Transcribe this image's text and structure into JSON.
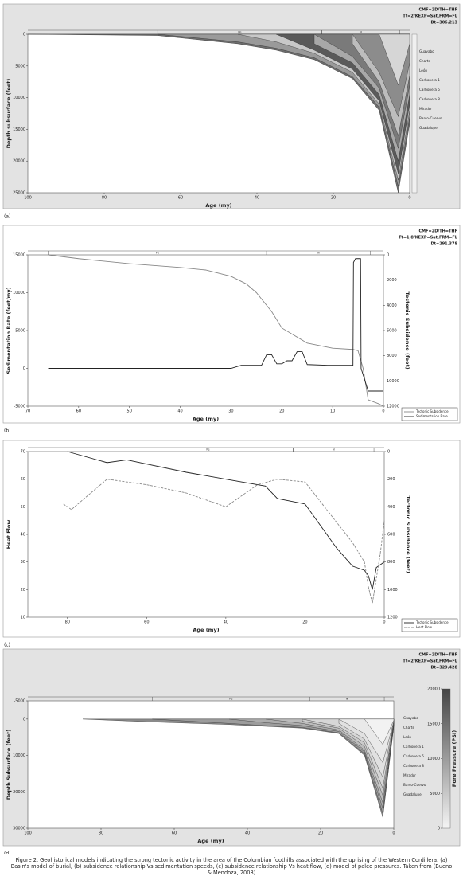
{
  "chart_data": [
    {
      "type": "area",
      "label": "(a)",
      "header": [
        "CMF=2D/TH=THF",
        "Tt=2/KEXP=Sat,FRM=FL",
        "Dt=306.213"
      ],
      "xlabel": "Age (my)",
      "ylabel": "Depth subsurface (feet)",
      "xlim": [
        100,
        0
      ],
      "xticks": [
        100,
        80,
        60,
        40,
        20,
        0
      ],
      "ylim": [
        25000,
        0
      ],
      "yticks": [
        0,
        5000,
        10000,
        15000,
        20000,
        25000
      ],
      "periods": [
        {
          "name": "Pe",
          "start": 66,
          "end": 23
        },
        {
          "name": "N",
          "start": 23,
          "end": 2.6
        }
      ],
      "legend": "labels-right",
      "x": [
        100,
        66,
        45,
        35,
        25,
        15,
        8,
        3,
        0
      ],
      "series": [
        {
          "name": "Guadalupe",
          "color": "#6d6d6d",
          "values": [
            0,
            200,
            1500,
            2500,
            4000,
            7000,
            12000,
            25000,
            14000
          ]
        },
        {
          "name": "Barco-Cuervo",
          "color": "#9a9a9a",
          "values": [
            null,
            0,
            1200,
            2200,
            3700,
            6700,
            11500,
            24000,
            13000
          ]
        },
        {
          "name": "Mirador",
          "color": "#c8c8c8",
          "values": [
            null,
            null,
            0,
            1200,
            3000,
            6000,
            11000,
            23000,
            12000
          ]
        },
        {
          "name": "Carbonera 8",
          "color": "#5a5a5a",
          "values": [
            null,
            null,
            null,
            0,
            2500,
            5500,
            10500,
            22000,
            11000
          ]
        },
        {
          "name": "Carbonera 5",
          "color": "#a8a8a8",
          "values": [
            null,
            null,
            null,
            null,
            1500,
            4500,
            9500,
            20000,
            9500
          ]
        },
        {
          "name": "Carbonera 1",
          "color": "#7a7a7a",
          "values": [
            null,
            null,
            null,
            null,
            0,
            3500,
            8500,
            18000,
            8000
          ]
        },
        {
          "name": "León",
          "color": "#bdbdbd",
          "values": [
            null,
            null,
            null,
            null,
            null,
            1500,
            7500,
            16000,
            6500
          ]
        },
        {
          "name": "Charte",
          "color": "#8c8c8c",
          "values": [
            null,
            null,
            null,
            null,
            null,
            0,
            6000,
            13000,
            4500
          ]
        },
        {
          "name": "Guayabo",
          "color": "#d6d6d6",
          "values": [
            null,
            null,
            null,
            null,
            null,
            null,
            0,
            8000,
            1500
          ]
        }
      ]
    },
    {
      "type": "line",
      "label": "(b)",
      "header": [
        "CMF=2D/TH=THF",
        "Tt=1,8/KEXP=Sat,FRM=FL",
        "Dt=291.378"
      ],
      "xlabel": "Age (my)",
      "ylabel": "Sedimentation Rate (feet/my)",
      "y2label": "Tectonic Subsidence (feet)",
      "xlim": [
        70,
        0
      ],
      "xticks": [
        70,
        60,
        50,
        40,
        30,
        20,
        10,
        0
      ],
      "ylim": [
        -5000,
        15000
      ],
      "yticks": [
        -5000,
        0,
        5000,
        10000,
        15000
      ],
      "y2lim": [
        12000,
        0
      ],
      "y2ticks": [
        0,
        2000,
        4000,
        6000,
        8000,
        10000,
        12000
      ],
      "periods": [
        {
          "name": "Pe",
          "start": 66,
          "end": 23
        },
        {
          "name": "N",
          "start": 23,
          "end": 2.6
        }
      ],
      "legend": "lower right",
      "series": [
        {
          "name": "Tectonic Subsidence",
          "color": "#888888",
          "axis": "y2",
          "x": [
            66,
            60,
            50,
            40,
            35,
            30,
            27,
            25,
            22,
            20,
            15,
            10,
            6,
            5,
            4,
            3,
            1,
            0
          ],
          "values": [
            0,
            300,
            700,
            1000,
            1200,
            1700,
            2300,
            3000,
            4500,
            5800,
            7000,
            7400,
            7500,
            7600,
            9000,
            11500,
            11800,
            12000
          ]
        },
        {
          "name": "Sedimentation Rate",
          "color": "#222222",
          "x": [
            66,
            30,
            28,
            24,
            23,
            22,
            21,
            20,
            19,
            18,
            17,
            16,
            15,
            11,
            6,
            5.9,
            5.5,
            4.5,
            4.4,
            3,
            0
          ],
          "values": [
            0,
            0,
            400,
            400,
            1800,
            1800,
            600,
            600,
            1000,
            1000,
            2200,
            2200,
            500,
            400,
            400,
            14000,
            14500,
            14500,
            0,
            -3000,
            -3000
          ]
        }
      ]
    },
    {
      "type": "line",
      "label": "(c)",
      "xlabel": "Age (my)",
      "ylabel": "Heat Flow",
      "y2label": "Tectonic Subsidence (feet)",
      "xlim": [
        90,
        0
      ],
      "xticks": [
        80,
        60,
        40,
        20,
        0
      ],
      "ylim": [
        10,
        70
      ],
      "yticks": [
        10,
        20,
        30,
        40,
        50,
        60,
        70
      ],
      "y2lim": [
        1200,
        0
      ],
      "y2ticks": [
        0,
        200,
        400,
        600,
        800,
        1000,
        1200
      ],
      "periods": [
        {
          "name": "Pe",
          "start": 66,
          "end": 23
        },
        {
          "name": "N",
          "start": 23,
          "end": 2.6
        }
      ],
      "legend": "lower right",
      "series": [
        {
          "name": "Tectonic Subsidence",
          "color": "#222222",
          "axis": "y2",
          "x": [
            80,
            70,
            65,
            50,
            40,
            30,
            27,
            20,
            12,
            8,
            5,
            4,
            3,
            2,
            0
          ],
          "values": [
            0,
            80,
            60,
            150,
            200,
            250,
            340,
            380,
            700,
            830,
            860,
            900,
            1000,
            840,
            800
          ]
        },
        {
          "name": "Heat Flow",
          "color": "#888888",
          "dash": true,
          "x": [
            81,
            79,
            70,
            60,
            50,
            40,
            32,
            27,
            20,
            14,
            8,
            5,
            4,
            3,
            1,
            0
          ],
          "values": [
            51,
            49,
            60,
            58,
            55,
            50,
            58,
            60,
            59,
            48,
            37,
            30,
            21,
            15,
            33,
            45
          ]
        }
      ]
    },
    {
      "type": "area",
      "label": "(d)",
      "header": [
        "CMF=2D/TH=THF",
        "Tt=2/KEXP=Sat,FRM=FL",
        "Dt=329.428"
      ],
      "xlabel": "Age (my)",
      "ylabel": "Depth Subsurface (feet)",
      "xlim": [
        100,
        0
      ],
      "xticks": [
        100,
        80,
        60,
        40,
        20,
        0
      ],
      "ylim": [
        30000,
        -5000
      ],
      "yticks": [
        -5000,
        0,
        10000,
        20000,
        30000
      ],
      "periods": [
        {
          "name": "Pe",
          "start": 66,
          "end": 23
        },
        {
          "name": "N",
          "start": 23,
          "end": 2.6
        }
      ],
      "legend": "labels-right",
      "colorbar": {
        "label": "Pore Pressure (PSI)",
        "lim": [
          0,
          20000
        ],
        "ticks": [
          0,
          5000,
          10000,
          15000,
          20000
        ]
      },
      "x": [
        85,
        66,
        45,
        35,
        25,
        15,
        8,
        3,
        0
      ],
      "series": [
        {
          "name": "Guadalupe",
          "color": "#8a8a8a",
          "values": [
            0,
            800,
            1500,
            2000,
            2500,
            4000,
            10000,
            27000,
            2000
          ]
        },
        {
          "name": "Barco-Cuervo",
          "color": "#9c9c9c",
          "values": [
            null,
            0,
            1200,
            1800,
            2300,
            3800,
            9500,
            26000,
            1800
          ]
        },
        {
          "name": "Mirador",
          "color": "#adadad",
          "values": [
            null,
            null,
            0,
            1000,
            1800,
            3400,
            9000,
            24500,
            1600
          ]
        },
        {
          "name": "Carbonera 8",
          "color": "#bdbdbd",
          "values": [
            null,
            null,
            null,
            0,
            1200,
            3000,
            8500,
            23000,
            1400
          ]
        },
        {
          "name": "Carbonera 5",
          "color": "#cbcbcb",
          "values": [
            null,
            null,
            null,
            null,
            600,
            2500,
            7500,
            21000,
            1200
          ]
        },
        {
          "name": "Carbonera 1",
          "color": "#d7d7d7",
          "values": [
            null,
            null,
            null,
            null,
            0,
            2000,
            6500,
            19000,
            1000
          ]
        },
        {
          "name": "León",
          "color": "#e1e1e1",
          "values": [
            null,
            null,
            null,
            null,
            null,
            1200,
            5500,
            16000,
            800
          ]
        },
        {
          "name": "Charte",
          "color": "#e9e9e9",
          "values": [
            null,
            null,
            null,
            null,
            null,
            0,
            4000,
            12000,
            600
          ]
        },
        {
          "name": "Guayabo",
          "color": "#f2f2f2",
          "values": [
            null,
            null,
            null,
            null,
            null,
            null,
            0,
            7000,
            300
          ]
        }
      ]
    }
  ],
  "caption": "Figure 2. Geohistorical models indicating the strong tectonic activity in the area of the Colombian foothills associated with the uprising of the Western Cordillera. (a) Basin's model of burial, (b) subsidence relationship Vs sedimentation speeds, (c) subsidence relationship Vs heat flow, (d) model of paleo pressures. Taken from (Bueno & Mendoza, 2008)"
}
